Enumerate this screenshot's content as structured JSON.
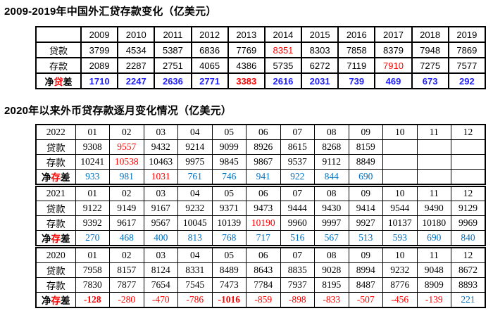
{
  "colors": {
    "red": "#ff0000",
    "annual_net_blue": "#1f1fff",
    "monthly_net_blue": "#0070c0",
    "text": "#000000",
    "border": "#000000"
  },
  "section1": {
    "title": "2009-2019年中国外汇贷存款变化（亿美元）",
    "table": {
      "header": [
        "",
        "2009",
        "2010",
        "2011",
        "2012",
        "2013",
        "2014",
        "2015",
        "2016",
        "2017",
        "2018",
        "2019"
      ],
      "rows": [
        {
          "name": "loan-row",
          "label": [
            {
              "t": "贷款"
            }
          ],
          "label_bold": false,
          "cells": [
            "3799",
            "4534",
            "5387",
            "6836",
            "7769",
            {
              "v": "8351",
              "c": "red"
            },
            "8303",
            "7858",
            "8379",
            "7948",
            "7869"
          ]
        },
        {
          "name": "deposit-row",
          "label": [
            {
              "t": "存款"
            }
          ],
          "label_bold": false,
          "cells": [
            "2089",
            "2287",
            "2751",
            "4065",
            "4386",
            "5735",
            "6272",
            "7119",
            {
              "v": "7910",
              "c": "red"
            },
            "7275",
            "7577"
          ]
        },
        {
          "name": "net-loan-gap-row",
          "label": [
            {
              "t": "净"
            },
            {
              "t": "贷",
              "c": "red"
            },
            {
              "t": "差"
            }
          ],
          "label_bold": true,
          "cells": [
            {
              "v": "1710",
              "c": "blue1",
              "b": true
            },
            {
              "v": "2247",
              "c": "blue1",
              "b": true
            },
            {
              "v": "2636",
              "c": "blue1",
              "b": true
            },
            {
              "v": "2771",
              "c": "blue1",
              "b": true
            },
            {
              "v": "3383",
              "c": "red",
              "b": true
            },
            {
              "v": "2616",
              "c": "blue1",
              "b": true
            },
            {
              "v": "2031",
              "c": "blue1",
              "b": true
            },
            {
              "v": "739",
              "c": "blue1",
              "b": true
            },
            {
              "v": "469",
              "c": "blue1",
              "b": true
            },
            {
              "v": "673",
              "c": "blue1",
              "b": true
            },
            {
              "v": "292",
              "c": "blue1",
              "b": true
            }
          ]
        }
      ]
    }
  },
  "section2": {
    "title": "2020年以来外币贷存款逐月变化情况（亿美元）",
    "blocks": [
      {
        "year": "2022",
        "months": [
          "01",
          "02",
          "03",
          "04",
          "05",
          "06",
          "07",
          "08",
          "09",
          "10",
          "11",
          "12"
        ],
        "rows": [
          {
            "name": "loan-row",
            "label": [
              {
                "t": "贷款"
              }
            ],
            "label_bold": false,
            "cells": [
              "9308",
              {
                "v": "9557",
                "c": "red"
              },
              "9432",
              "9214",
              "9099",
              "8926",
              "8615",
              "8268",
              "8159",
              "",
              "",
              ""
            ]
          },
          {
            "name": "deposit-row",
            "label": [
              {
                "t": "存款"
              }
            ],
            "label_bold": false,
            "cells": [
              "10241",
              {
                "v": "10538",
                "c": "red"
              },
              "10463",
              "9975",
              "9845",
              "9867",
              "9537",
              "9112",
              "8849",
              "",
              "",
              ""
            ]
          },
          {
            "name": "net-deposit-gap-row",
            "label": [
              {
                "t": "净"
              },
              {
                "t": "存",
                "c": "red"
              },
              {
                "t": "差"
              }
            ],
            "label_bold": true,
            "cells": [
              {
                "v": "933",
                "c": "blue2"
              },
              {
                "v": "981",
                "c": "blue2"
              },
              {
                "v": "1031",
                "c": "red"
              },
              {
                "v": "761",
                "c": "blue2"
              },
              {
                "v": "746",
                "c": "blue2"
              },
              {
                "v": "941",
                "c": "blue2"
              },
              {
                "v": "922",
                "c": "blue2"
              },
              {
                "v": "844",
                "c": "blue2"
              },
              {
                "v": "690",
                "c": "blue2"
              },
              "",
              "",
              ""
            ]
          }
        ]
      },
      {
        "year": "2021",
        "months": [
          "01",
          "02",
          "03",
          "04",
          "05",
          "06",
          "07",
          "08",
          "09",
          "10",
          "11",
          "12"
        ],
        "rows": [
          {
            "name": "loan-row",
            "label": [
              {
                "t": "贷款"
              }
            ],
            "label_bold": false,
            "cells": [
              "9122",
              "9149",
              "9167",
              "9232",
              "9371",
              "9473",
              "9444",
              "9430",
              "9414",
              "9544",
              "9490",
              "9129"
            ]
          },
          {
            "name": "deposit-row",
            "label": [
              {
                "t": "存款"
              }
            ],
            "label_bold": false,
            "cells": [
              "9392",
              "9617",
              "9567",
              "10045",
              "10139",
              {
                "v": "10190",
                "c": "red"
              },
              "9960",
              "9997",
              "9927",
              "10137",
              "10180",
              "9969"
            ]
          },
          {
            "name": "net-deposit-gap-row",
            "label": [
              {
                "t": "净"
              },
              {
                "t": "存",
                "c": "red"
              },
              {
                "t": "差"
              }
            ],
            "label_bold": true,
            "cells": [
              {
                "v": "270",
                "c": "blue2"
              },
              {
                "v": "468",
                "c": "blue2"
              },
              {
                "v": "400",
                "c": "blue2"
              },
              {
                "v": "813",
                "c": "blue2"
              },
              {
                "v": "768",
                "c": "blue2"
              },
              {
                "v": "717",
                "c": "blue2"
              },
              {
                "v": "516",
                "c": "blue2"
              },
              {
                "v": "567",
                "c": "blue2"
              },
              {
                "v": "513",
                "c": "blue2"
              },
              {
                "v": "593",
                "c": "blue2"
              },
              {
                "v": "690",
                "c": "blue2"
              },
              {
                "v": "840",
                "c": "blue2"
              }
            ]
          }
        ]
      },
      {
        "year": "2020",
        "months": [
          "01",
          "02",
          "03",
          "04",
          "05",
          "06",
          "07",
          "08",
          "09",
          "10",
          "11",
          "12"
        ],
        "rows": [
          {
            "name": "loan-row",
            "label": [
              {
                "t": "贷款"
              }
            ],
            "label_bold": false,
            "cells": [
              "7958",
              "8157",
              "8124",
              "8331",
              "8489",
              "8643",
              "8835",
              "9028",
              "8994",
              "9232",
              "9048",
              "8672"
            ]
          },
          {
            "name": "deposit-row",
            "label": [
              {
                "t": "存款"
              }
            ],
            "label_bold": false,
            "cells": [
              "7830",
              "7877",
              "7654",
              "7545",
              "7473",
              "7784",
              "7937",
              "8195",
              "8487",
              "8776",
              "8909",
              "8893"
            ]
          },
          {
            "name": "net-deposit-gap-row",
            "label": [
              {
                "t": "净"
              },
              {
                "t": "存",
                "c": "red"
              },
              {
                "t": "差"
              }
            ],
            "label_bold": true,
            "cells": [
              {
                "v": "-128",
                "c": "red",
                "b": true
              },
              {
                "v": "-280",
                "c": "red"
              },
              {
                "v": "-470",
                "c": "red"
              },
              {
                "v": "-786",
                "c": "red"
              },
              {
                "v": "-1016",
                "c": "red",
                "b": true
              },
              {
                "v": "-859",
                "c": "red"
              },
              {
                "v": "-898",
                "c": "red"
              },
              {
                "v": "-833",
                "c": "red"
              },
              {
                "v": "-507",
                "c": "red"
              },
              {
                "v": "-456",
                "c": "red"
              },
              {
                "v": "-139",
                "c": "red"
              },
              {
                "v": "221",
                "c": "blue2"
              }
            ]
          }
        ]
      }
    ]
  }
}
